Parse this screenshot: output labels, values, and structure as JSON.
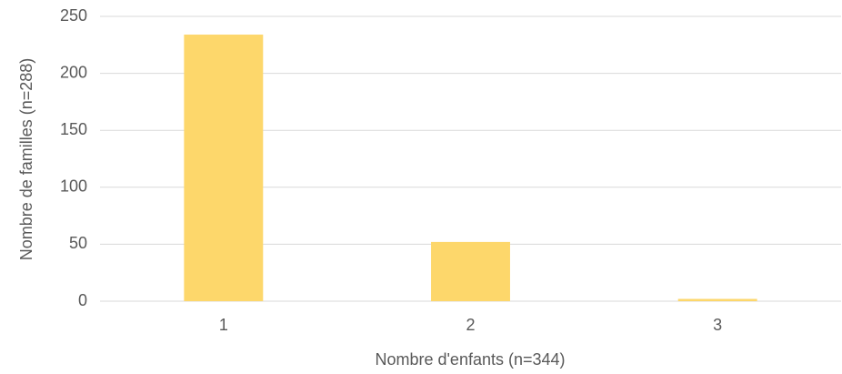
{
  "chart_data": {
    "type": "bar",
    "x_label": "Nombre d'enfants (n=344)",
    "y_label": "Nombre de familles (n=288)",
    "categories": [
      "1",
      "2",
      "3"
    ],
    "values": [
      234,
      52,
      2
    ],
    "color": "#fdd76b",
    "ylim": [
      0,
      250
    ],
    "yticks": [
      0,
      50,
      100,
      150,
      200,
      250
    ],
    "grid": true
  }
}
